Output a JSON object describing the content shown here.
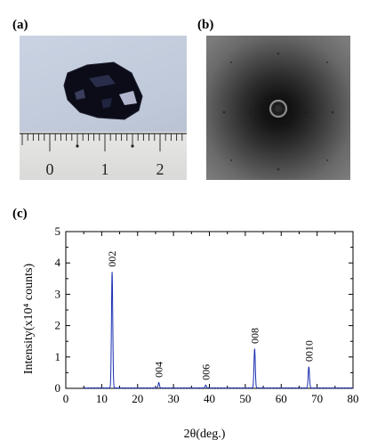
{
  "panels": {
    "a": "(a)",
    "b": "(b)",
    "c": "(c)"
  },
  "ruler": {
    "numbers": [
      "0",
      "1",
      "2"
    ]
  },
  "chart_data": {
    "type": "line",
    "xlabel": "2θ(deg.)",
    "ylabel": "Intensity(x10⁴ counts)",
    "xlim": [
      0,
      80
    ],
    "ylim": [
      0,
      5
    ],
    "xticks": [
      0,
      10,
      20,
      30,
      40,
      50,
      60,
      70,
      80
    ],
    "yticks": [
      0,
      1,
      2,
      3,
      4,
      5
    ],
    "peaks": [
      {
        "label": "002",
        "x": 12.9,
        "y": 3.7
      },
      {
        "label": "004",
        "x": 25.9,
        "y": 0.17
      },
      {
        "label": "006",
        "x": 39.0,
        "y": 0.09
      },
      {
        "label": "008",
        "x": 52.6,
        "y": 1.25
      },
      {
        "label": "0010",
        "x": 67.7,
        "y": 0.68
      }
    ],
    "scan_range": [
      5,
      80
    ],
    "line_color": "#1a2fb0"
  }
}
